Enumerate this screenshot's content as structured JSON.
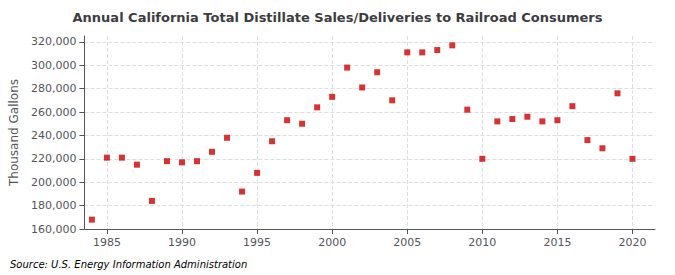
{
  "chart_data": {
    "type": "scatter",
    "title": "Annual California Total Distillate Sales/Deliveries to Railroad Consumers",
    "ylabel": "Thousand Gallons",
    "source": "Source: U.S. Energy Information Administration",
    "x": [
      1984,
      1985,
      1986,
      1987,
      1988,
      1989,
      1990,
      1991,
      1992,
      1993,
      1994,
      1995,
      1996,
      1997,
      1998,
      1999,
      2000,
      2001,
      2002,
      2003,
      2004,
      2005,
      2006,
      2007,
      2008,
      2009,
      2010,
      2011,
      2012,
      2013,
      2014,
      2015,
      2016,
      2017,
      2018,
      2019,
      2020
    ],
    "values": [
      168000,
      221000,
      221000,
      215000,
      184000,
      218000,
      217000,
      218000,
      226000,
      238000,
      192000,
      208000,
      235000,
      253000,
      250000,
      264000,
      273000,
      298000,
      281000,
      294000,
      270000,
      311000,
      311000,
      313000,
      317000,
      262000,
      220000,
      252000,
      254000,
      256000,
      252000,
      253000,
      265000,
      236000,
      229000,
      276000,
      220000
    ],
    "color": "#cc0000",
    "marker": "square",
    "xlim": [
      1983.5,
      2021.5
    ],
    "xticks": [
      1985,
      1990,
      1995,
      2000,
      2005,
      2010,
      2015,
      2020
    ],
    "ylim": [
      160000,
      325000
    ],
    "yticks": [
      {
        "value": 160000,
        "label": "160,000"
      },
      {
        "value": 180000,
        "label": "180,000"
      },
      {
        "value": 200000,
        "label": "200,000"
      },
      {
        "value": 220000,
        "label": "220,000"
      },
      {
        "value": 240000,
        "label": "240,000"
      },
      {
        "value": 260000,
        "label": "260,000"
      },
      {
        "value": 280000,
        "label": "280,000"
      },
      {
        "value": 300000,
        "label": "300,000"
      },
      {
        "value": 320000,
        "label": "320,000"
      }
    ],
    "grid": true
  }
}
